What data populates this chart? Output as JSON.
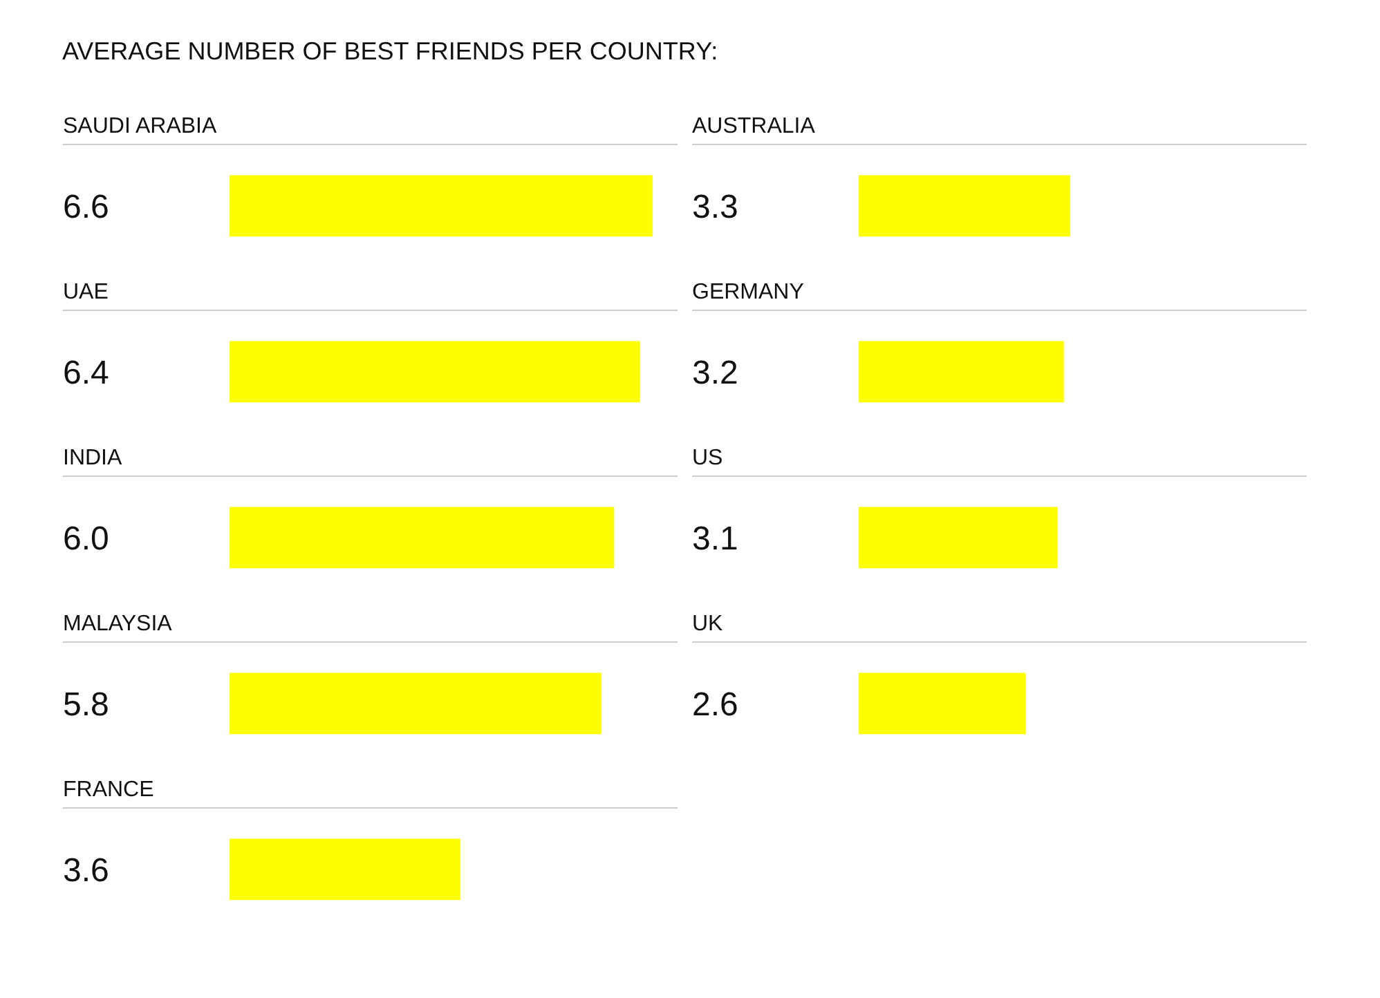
{
  "chart_data": [
    {
      "type": "bar",
      "orientation": "horizontal",
      "title": "AVERAGE NUMBER OF BEST FRIENDS PER COUNTRY:",
      "categories": [
        "SAUDI ARABIA",
        "UAE",
        "INDIA",
        "MALAYSIA",
        "FRANCE"
      ],
      "values": [
        6.6,
        6.4,
        6.0,
        5.8,
        3.6
      ],
      "value_labels": [
        "6.6",
        "6.4",
        "6.0",
        "5.8",
        "3.6"
      ],
      "color": "#ffff00",
      "xlim": [
        0,
        7
      ],
      "tick_labels": false
    },
    {
      "type": "bar",
      "orientation": "horizontal",
      "categories": [
        "AUSTRALIA",
        "GERMANY",
        "US",
        "UK"
      ],
      "values": [
        3.3,
        3.2,
        3.1,
        2.6
      ],
      "value_labels": [
        "3.3",
        "3.2",
        "3.1",
        "2.6"
      ],
      "color": "#ffff00",
      "xlim": [
        0,
        7
      ],
      "tick_labels": false
    }
  ]
}
